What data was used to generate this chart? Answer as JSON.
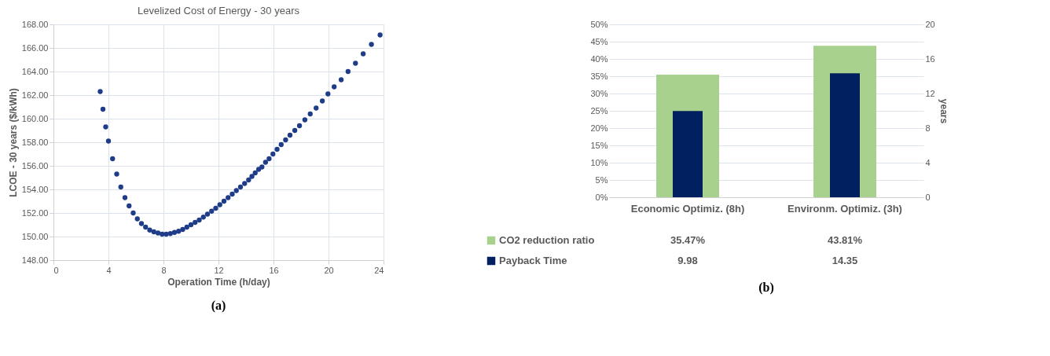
{
  "chart_data": [
    {
      "type": "scatter",
      "title": "Levelized Cost of Energy - 30 years",
      "xlabel": "Operation Time (h/day)",
      "ylabel": "LCOE - 30 years ($/kWh)",
      "annotations": [
        "(a)"
      ],
      "x": [
        3.4,
        3.6,
        3.8,
        4.0,
        4.3,
        4.6,
        4.9,
        5.2,
        5.5,
        5.8,
        6.1,
        6.4,
        6.7,
        7.0,
        7.3,
        7.6,
        7.9,
        8.2,
        8.5,
        8.8,
        9.1,
        9.4,
        9.7,
        10.0,
        10.3,
        10.6,
        10.9,
        11.2,
        11.5,
        11.8,
        12.1,
        12.4,
        12.7,
        13.0,
        13.3,
        13.6,
        13.9,
        14.19,
        14.43,
        14.67,
        14.92,
        15.16,
        15.42,
        15.68,
        15.96,
        16.26,
        16.56,
        16.88,
        17.2,
        17.55,
        17.89,
        18.28,
        18.67,
        19.1,
        19.55,
        19.96,
        20.41,
        20.92,
        21.42,
        21.96,
        22.52,
        23.12,
        23.75
      ],
      "series": [
        {
          "color": "#1f3c88",
          "values": [
            162.3,
            160.8,
            159.3,
            158.1,
            156.6,
            155.3,
            154.2,
            153.3,
            152.6,
            152.0,
            151.5,
            151.1,
            150.8,
            150.55,
            150.4,
            150.3,
            150.2,
            150.2,
            150.25,
            150.35,
            150.45,
            150.6,
            150.8,
            151.0,
            151.2,
            151.4,
            151.65,
            151.9,
            152.15,
            152.4,
            152.7,
            153.0,
            153.3,
            153.6,
            153.9,
            154.2,
            154.5,
            154.8,
            155.1,
            155.4,
            155.7,
            155.9,
            156.3,
            156.6,
            157.0,
            157.4,
            157.8,
            158.2,
            158.6,
            159.0,
            159.4,
            159.9,
            160.4,
            160.9,
            161.5,
            162.1,
            162.7,
            163.3,
            164.0,
            164.7,
            165.5,
            166.3,
            167.1
          ]
        }
      ],
      "xlim": [
        0,
        24
      ],
      "xticks": [
        0,
        4,
        8,
        12,
        16,
        20,
        24
      ],
      "ylim": [
        148,
        168
      ],
      "yticks": [
        {
          "value": 148,
          "label": "148.00"
        },
        {
          "value": 150,
          "label": "150.00"
        },
        {
          "value": 152,
          "label": "152.00"
        },
        {
          "value": 154,
          "label": "154.00"
        },
        {
          "value": 156,
          "label": "156.00"
        },
        {
          "value": 158,
          "label": "158.00"
        },
        {
          "value": 160,
          "label": "160.00"
        },
        {
          "value": 162,
          "label": "162.00"
        },
        {
          "value": 164,
          "label": "164.00"
        },
        {
          "value": 166,
          "label": "166.00"
        },
        {
          "value": 168,
          "label": "168.00"
        }
      ],
      "grid": true,
      "marker": "circle",
      "legend": false
    },
    {
      "type": "bar",
      "y2label": "years",
      "annotations": [
        "(b)"
      ],
      "categories": [
        "Economic Optimiz. (8h)",
        "Environm. Optimiz. (3h)"
      ],
      "series": [
        {
          "name": "CO2 reduction ratio",
          "color": "#a9d18e",
          "values": [
            35.47,
            43.81
          ],
          "value_labels": [
            "35.47%",
            "43.81%"
          ]
        },
        {
          "name": "Payback Time",
          "color": "#002060",
          "values": [
            9.98,
            14.35
          ],
          "axis": "y2",
          "value_labels": [
            "9.98",
            "14.35"
          ]
        }
      ],
      "ylim": [
        0,
        50
      ],
      "yticks": [
        {
          "value": 0,
          "label": "0%"
        },
        {
          "value": 5,
          "label": "5%"
        },
        {
          "value": 10,
          "label": "10%"
        },
        {
          "value": 15,
          "label": "15%"
        },
        {
          "value": 20,
          "label": "20%"
        },
        {
          "value": 25,
          "label": "25%"
        },
        {
          "value": 30,
          "label": "30%"
        },
        {
          "value": 35,
          "label": "35%"
        },
        {
          "value": 40,
          "label": "40%"
        },
        {
          "value": 45,
          "label": "45%"
        },
        {
          "value": 50,
          "label": "50%"
        }
      ],
      "y2lim": [
        0,
        20
      ],
      "y2ticks": [
        0,
        4,
        8,
        12,
        16,
        20
      ],
      "grid": "y",
      "legend": "bottom"
    }
  ]
}
